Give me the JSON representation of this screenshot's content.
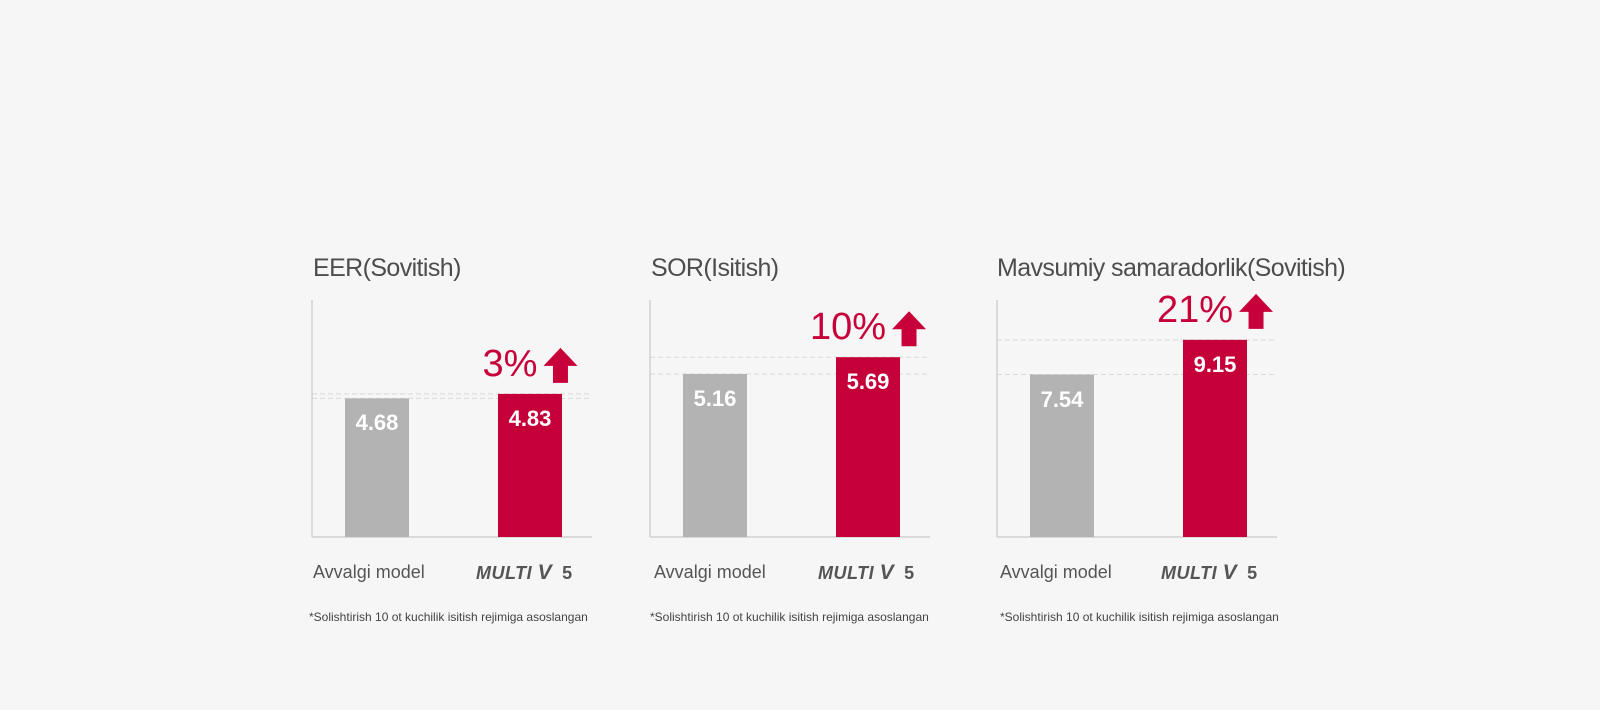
{
  "colors": {
    "previous": "#b3b3b3",
    "multiv": "#c50038",
    "accent": "#c8003a"
  },
  "chart_data": [
    {
      "type": "bar",
      "title": "EER(Sovitish)",
      "categories": [
        "Avvalgi model",
        "MULTI V 5"
      ],
      "values": [
        4.68,
        4.83
      ],
      "value_labels": [
        "4.68",
        "4.83"
      ],
      "increase_label": "3%",
      "footnote": "*Solishtirish 10 ot kuchilik isitish rejimiga asoslangan",
      "ylim": [
        0,
        8.0
      ]
    },
    {
      "type": "bar",
      "title": "SOR(Isitish)",
      "categories": [
        "Avvalgi model",
        "MULTI V 5"
      ],
      "values": [
        5.16,
        5.69
      ],
      "value_labels": [
        "5.16",
        "5.69"
      ],
      "increase_label": "10%",
      "footnote": "*Solishtirish 10 ot kuchilik isitish rejimiga asoslangan",
      "ylim": [
        0,
        7.5
      ]
    },
    {
      "type": "bar",
      "title": "Mavsumiy samaradorlik(Sovitish)",
      "categories": [
        "Avvalgi model",
        "MULTI V 5"
      ],
      "values": [
        7.54,
        9.15
      ],
      "value_labels": [
        "7.54",
        "9.15"
      ],
      "increase_label": "21%",
      "footnote": "*Solishtirish 10 ot kuchilik isitish rejimiga asoslangan",
      "ylim": [
        0,
        11.0
      ]
    }
  ],
  "logo": {
    "text": "MULTI",
    "letter": "V",
    "number": "5"
  }
}
